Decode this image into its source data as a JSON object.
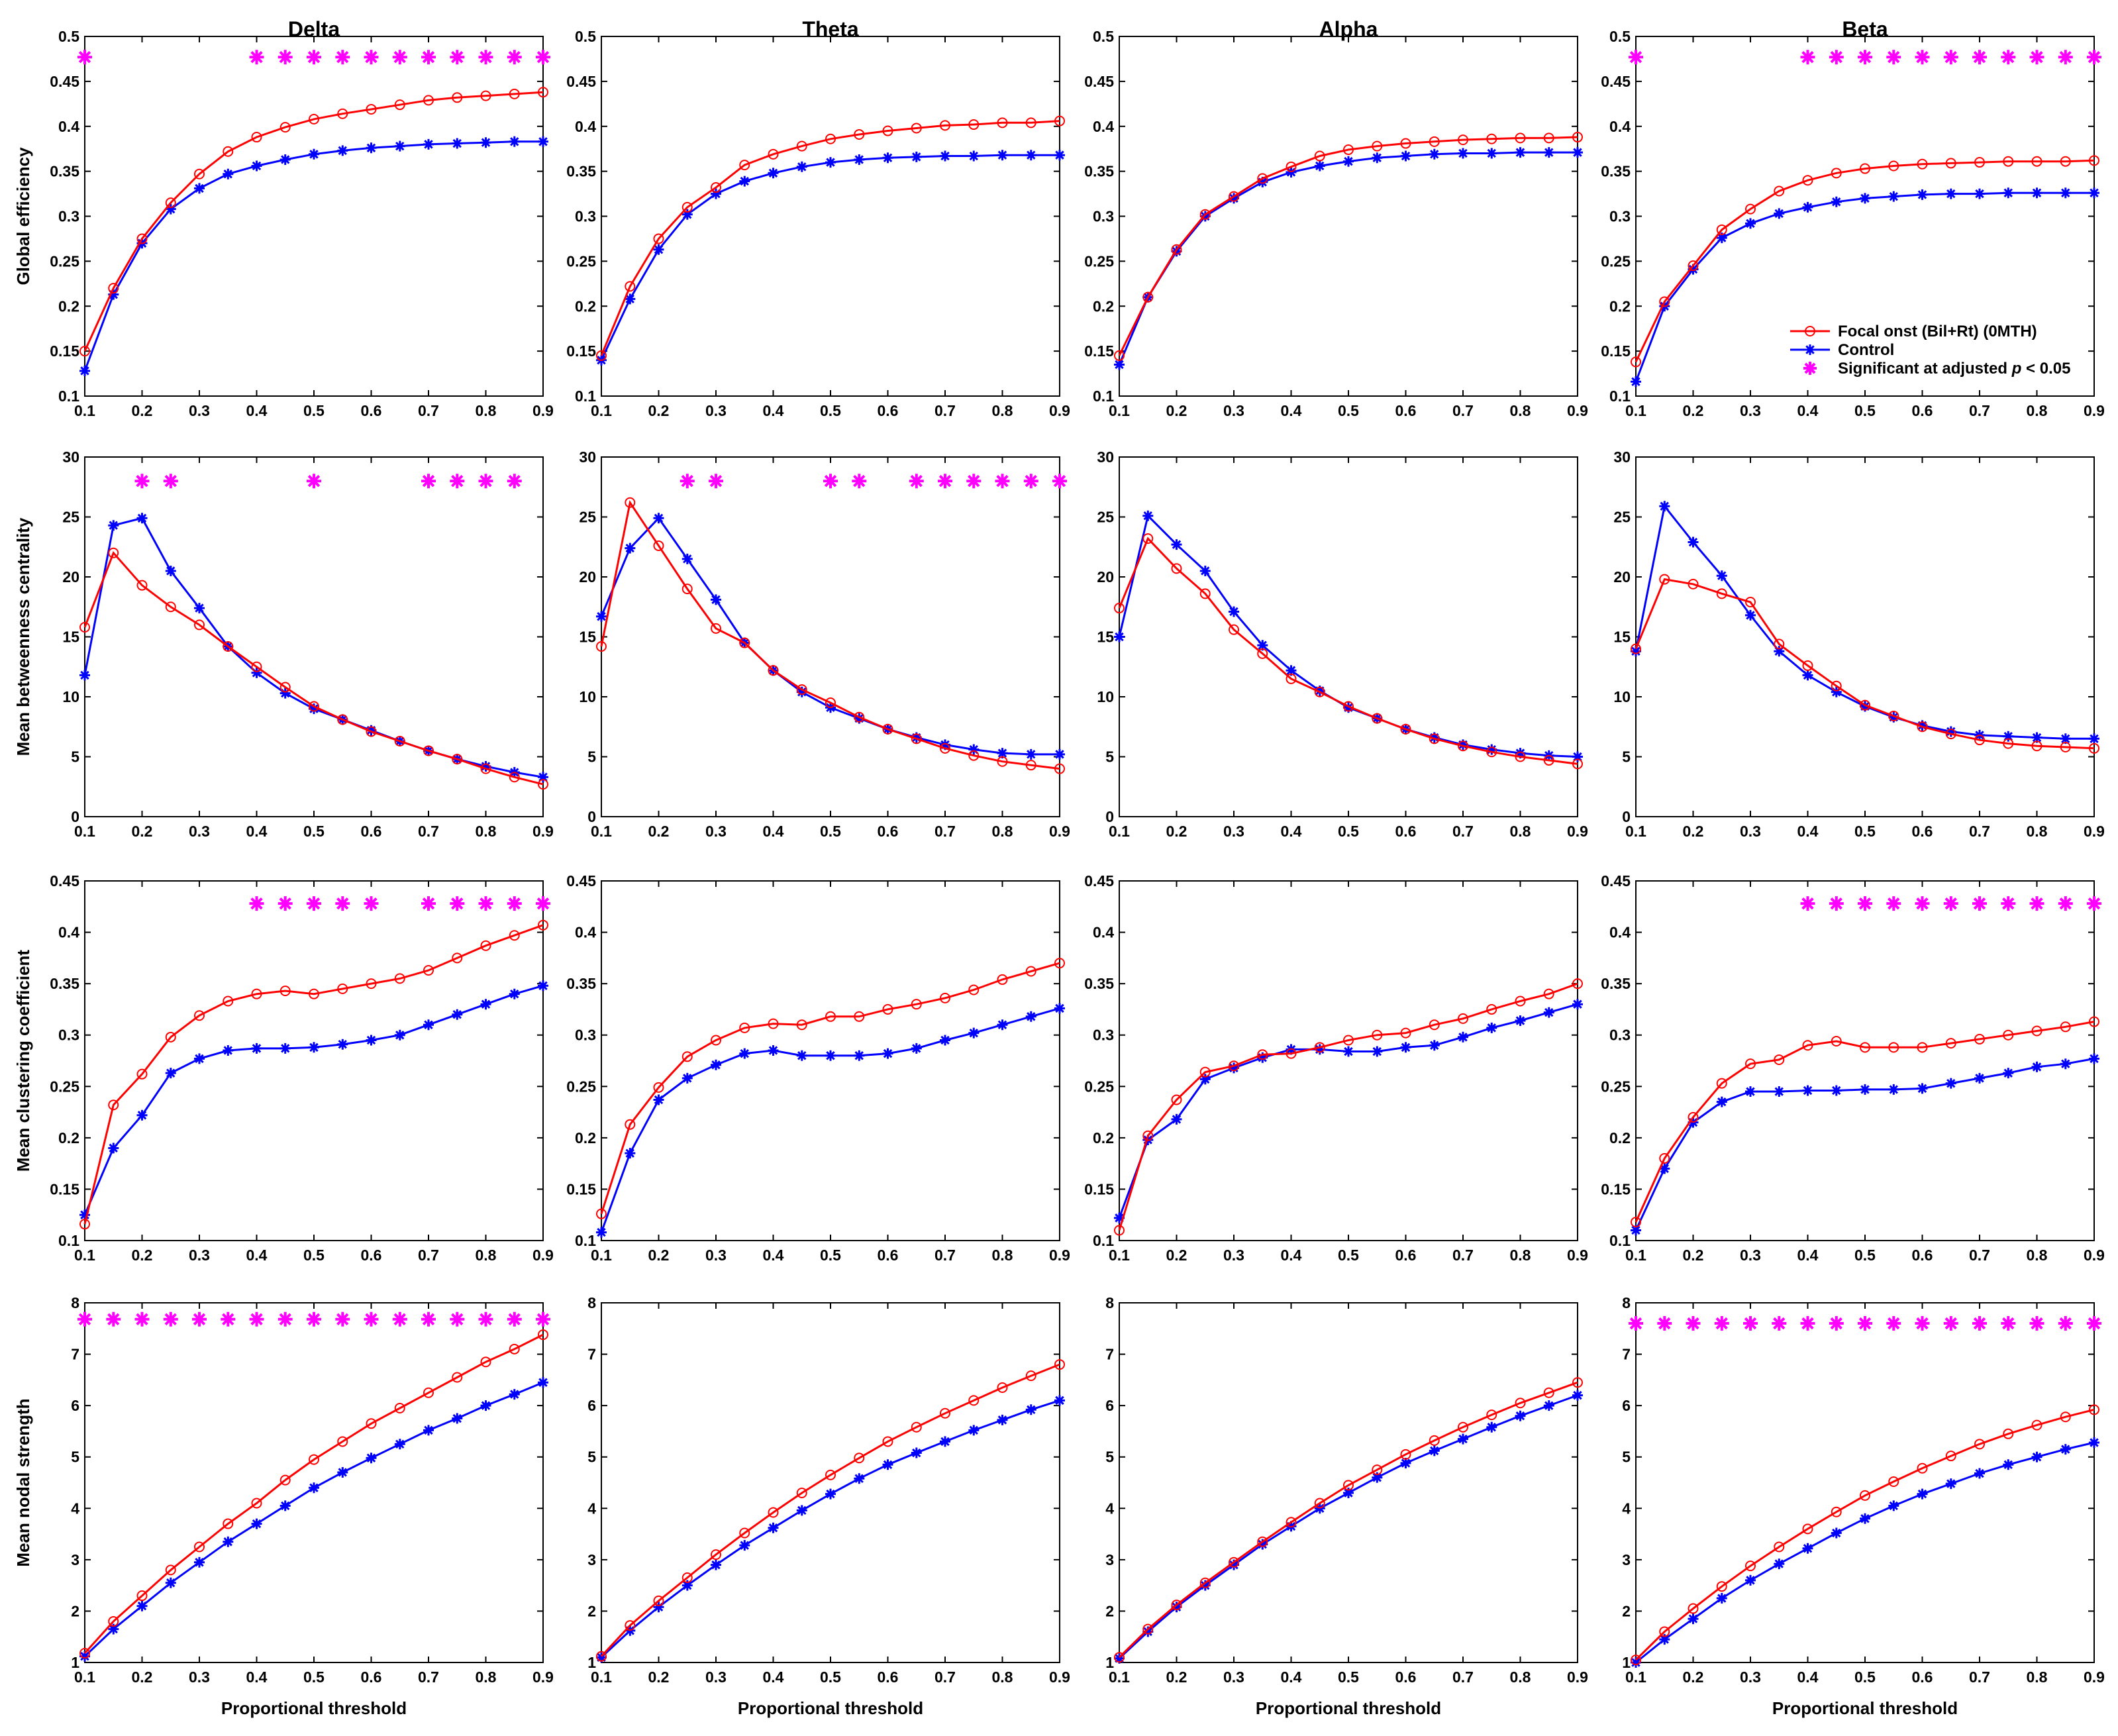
{
  "figure": {
    "columns": [
      "Delta",
      "Theta",
      "Alpha",
      "Beta"
    ],
    "row_labels": [
      "Global efficiency",
      "Mean betweenness centrality",
      "Mean clustering coefficient",
      "Mean nodal strength"
    ],
    "xlabel": "Proportional threshold",
    "legend": {
      "placement": "inside lower-right of Global efficiency / Beta panel",
      "series1": "Focal onst (Bil+Rt) (0MTH)",
      "series2": "Control",
      "sig_prefix": "Significant at adjusted ",
      "sig_p": "p",
      "sig_suffix": " < 0.05"
    },
    "colors": {
      "series1": "#ff0000",
      "series2": "#0000ff",
      "significance": "#ff00ff"
    }
  },
  "chart_data": {
    "type": "line",
    "x": [
      0.1,
      0.15,
      0.2,
      0.25,
      0.3,
      0.35,
      0.4,
      0.45,
      0.5,
      0.55,
      0.6,
      0.65,
      0.7,
      0.75,
      0.8,
      0.85,
      0.9
    ],
    "xlim": [
      0.1,
      0.9
    ],
    "xticks": [
      "0.1",
      "0.2",
      "0.3",
      "0.4",
      "0.5",
      "0.6",
      "0.7",
      "0.8",
      "0.9"
    ],
    "series_names": [
      "Focal onst (Bil+Rt) (0MTH)",
      "Control"
    ],
    "rows": [
      {
        "ylabel": "Global efficiency",
        "ylim": [
          0.1,
          0.5
        ],
        "yticks": [
          "0.1",
          "0.15",
          "0.2",
          "0.25",
          "0.3",
          "0.35",
          "0.4",
          "0.45",
          "0.5"
        ],
        "panels": [
          {
            "title": "Delta",
            "s1": [
              0.15,
              0.22,
              0.275,
              0.315,
              0.347,
              0.372,
              0.388,
              0.399,
              0.408,
              0.414,
              0.419,
              0.424,
              0.429,
              0.432,
              0.434,
              0.436,
              0.438
            ],
            "s2": [
              0.128,
              0.213,
              0.27,
              0.308,
              0.331,
              0.347,
              0.356,
              0.363,
              0.369,
              0.373,
              0.376,
              0.378,
              0.38,
              0.381,
              0.382,
              0.383,
              0.383
            ],
            "sig_x": [
              0.1,
              0.4,
              0.45,
              0.5,
              0.55,
              0.6,
              0.65,
              0.7,
              0.75,
              0.8,
              0.85,
              0.9
            ],
            "sig_y": 0.477
          },
          {
            "title": "Theta",
            "s1": [
              0.145,
              0.222,
              0.275,
              0.31,
              0.332,
              0.357,
              0.369,
              0.378,
              0.386,
              0.391,
              0.395,
              0.398,
              0.401,
              0.402,
              0.404,
              0.404,
              0.406
            ],
            "s2": [
              0.14,
              0.208,
              0.263,
              0.302,
              0.325,
              0.339,
              0.348,
              0.355,
              0.36,
              0.363,
              0.365,
              0.366,
              0.367,
              0.367,
              0.368,
              0.368,
              0.368
            ],
            "sig_x": [],
            "sig_y": 0.477
          },
          {
            "title": "Alpha",
            "s1": [
              0.145,
              0.21,
              0.263,
              0.302,
              0.322,
              0.342,
              0.355,
              0.367,
              0.374,
              0.378,
              0.381,
              0.383,
              0.385,
              0.386,
              0.387,
              0.387,
              0.388
            ],
            "s2": [
              0.135,
              0.21,
              0.261,
              0.3,
              0.32,
              0.338,
              0.349,
              0.356,
              0.361,
              0.365,
              0.367,
              0.369,
              0.37,
              0.37,
              0.371,
              0.371,
              0.371
            ],
            "sig_x": [],
            "sig_y": 0.477
          },
          {
            "title": "Beta",
            "s1": [
              0.138,
              0.205,
              0.245,
              0.285,
              0.308,
              0.328,
              0.34,
              0.348,
              0.353,
              0.356,
              0.358,
              0.359,
              0.36,
              0.361,
              0.361,
              0.361,
              0.362
            ],
            "s2": [
              0.116,
              0.2,
              0.241,
              0.276,
              0.292,
              0.303,
              0.31,
              0.316,
              0.32,
              0.322,
              0.324,
              0.325,
              0.325,
              0.326,
              0.326,
              0.326,
              0.326
            ],
            "sig_x": [
              0.1,
              0.4,
              0.45,
              0.5,
              0.55,
              0.6,
              0.65,
              0.7,
              0.75,
              0.8,
              0.85,
              0.9
            ],
            "sig_y": 0.477
          }
        ]
      },
      {
        "ylabel": "Mean betweenness centrality",
        "ylim": [
          0,
          30
        ],
        "yticks": [
          "0",
          "5",
          "10",
          "15",
          "20",
          "25",
          "30"
        ],
        "panels": [
          {
            "title": "Delta",
            "s1": [
              15.8,
              22.0,
              19.3,
              17.5,
              16.0,
              14.2,
              12.5,
              10.8,
              9.2,
              8.1,
              7.1,
              6.3,
              5.5,
              4.8,
              4.0,
              3.3,
              2.7
            ],
            "s2": [
              11.8,
              24.3,
              24.9,
              20.5,
              17.4,
              14.2,
              12.0,
              10.3,
              9.0,
              8.1,
              7.2,
              6.3,
              5.5,
              4.8,
              4.2,
              3.7,
              3.3
            ],
            "sig_x": [
              0.2,
              0.25,
              0.5,
              0.7,
              0.75,
              0.8,
              0.85
            ],
            "sig_y": 28.0
          },
          {
            "title": "Theta",
            "s1": [
              14.2,
              26.2,
              22.6,
              19.0,
              15.7,
              14.5,
              12.2,
              10.6,
              9.5,
              8.3,
              7.3,
              6.5,
              5.7,
              5.1,
              4.6,
              4.3,
              4.0
            ],
            "s2": [
              16.7,
              22.4,
              24.9,
              21.5,
              18.1,
              14.5,
              12.2,
              10.4,
              9.1,
              8.2,
              7.3,
              6.6,
              6.0,
              5.6,
              5.3,
              5.2,
              5.2
            ],
            "sig_x": [
              0.25,
              0.3,
              0.5,
              0.55,
              0.65,
              0.7,
              0.75,
              0.8,
              0.85,
              0.9
            ],
            "sig_y": 28.0
          },
          {
            "title": "Alpha",
            "s1": [
              17.4,
              23.2,
              20.7,
              18.6,
              15.6,
              13.6,
              11.5,
              10.4,
              9.2,
              8.2,
              7.3,
              6.5,
              5.9,
              5.4,
              5.0,
              4.7,
              4.4
            ],
            "s2": [
              15.0,
              25.1,
              22.7,
              20.5,
              17.1,
              14.3,
              12.2,
              10.5,
              9.1,
              8.2,
              7.3,
              6.6,
              6.0,
              5.6,
              5.3,
              5.1,
              5.0
            ],
            "sig_x": [],
            "sig_y": 28.0
          },
          {
            "title": "Beta",
            "s1": [
              14.0,
              19.8,
              19.4,
              18.6,
              17.9,
              14.4,
              12.6,
              10.9,
              9.3,
              8.4,
              7.5,
              6.9,
              6.4,
              6.1,
              5.9,
              5.8,
              5.7
            ],
            "s2": [
              13.8,
              25.9,
              22.9,
              20.1,
              16.8,
              13.8,
              11.8,
              10.4,
              9.2,
              8.3,
              7.6,
              7.1,
              6.8,
              6.7,
              6.6,
              6.5,
              6.5
            ],
            "sig_x": [],
            "sig_y": 28.0
          }
        ]
      },
      {
        "ylabel": "Mean clustering coefficient",
        "ylim": [
          0.1,
          0.45
        ],
        "yticks": [
          "0.1",
          "0.15",
          "0.2",
          "0.25",
          "0.3",
          "0.35",
          "0.4",
          "0.45"
        ],
        "panels": [
          {
            "title": "Delta",
            "s1": [
              0.116,
              0.232,
              0.262,
              0.298,
              0.319,
              0.333,
              0.34,
              0.343,
              0.34,
              0.345,
              0.35,
              0.355,
              0.363,
              0.375,
              0.387,
              0.397,
              0.407
            ],
            "s2": [
              0.125,
              0.19,
              0.222,
              0.263,
              0.277,
              0.285,
              0.287,
              0.287,
              0.288,
              0.291,
              0.295,
              0.3,
              0.31,
              0.32,
              0.33,
              0.34,
              0.348
            ],
            "sig_x": [
              0.4,
              0.45,
              0.5,
              0.55,
              0.6,
              0.7,
              0.75,
              0.8,
              0.85,
              0.9
            ],
            "sig_y": 0.428
          },
          {
            "title": "Theta",
            "s1": [
              0.126,
              0.213,
              0.249,
              0.279,
              0.295,
              0.307,
              0.311,
              0.31,
              0.318,
              0.318,
              0.325,
              0.33,
              0.336,
              0.344,
              0.354,
              0.362,
              0.37
            ],
            "s2": [
              0.108,
              0.185,
              0.237,
              0.258,
              0.271,
              0.282,
              0.285,
              0.28,
              0.28,
              0.28,
              0.282,
              0.287,
              0.295,
              0.302,
              0.31,
              0.318,
              0.326
            ],
            "sig_x": [],
            "sig_y": 0.428
          },
          {
            "title": "Alpha",
            "s1": [
              0.11,
              0.202,
              0.237,
              0.264,
              0.27,
              0.281,
              0.282,
              0.288,
              0.295,
              0.3,
              0.302,
              0.31,
              0.316,
              0.325,
              0.333,
              0.34,
              0.35
            ],
            "s2": [
              0.122,
              0.198,
              0.218,
              0.257,
              0.268,
              0.278,
              0.286,
              0.286,
              0.284,
              0.284,
              0.288,
              0.29,
              0.298,
              0.307,
              0.314,
              0.322,
              0.33
            ],
            "sig_x": [],
            "sig_y": 0.428
          },
          {
            "title": "Beta",
            "s1": [
              0.118,
              0.18,
              0.22,
              0.253,
              0.272,
              0.276,
              0.29,
              0.294,
              0.288,
              0.288,
              0.288,
              0.292,
              0.296,
              0.3,
              0.304,
              0.308,
              0.313
            ],
            "s2": [
              0.11,
              0.17,
              0.215,
              0.235,
              0.245,
              0.245,
              0.246,
              0.246,
              0.247,
              0.247,
              0.248,
              0.253,
              0.258,
              0.263,
              0.269,
              0.272,
              0.277
            ],
            "sig_x": [
              0.4,
              0.45,
              0.5,
              0.55,
              0.6,
              0.65,
              0.7,
              0.75,
              0.8,
              0.85,
              0.9
            ],
            "sig_y": 0.428
          }
        ]
      },
      {
        "ylabel": "Mean nodal strength",
        "ylim": [
          1,
          8
        ],
        "yticks": [
          "1",
          "2",
          "3",
          "4",
          "5",
          "6",
          "7",
          "8"
        ],
        "panels": [
          {
            "title": "Delta",
            "s1": [
              1.18,
              1.8,
              2.3,
              2.8,
              3.25,
              3.7,
              4.1,
              4.55,
              4.95,
              5.3,
              5.65,
              5.95,
              6.25,
              6.55,
              6.85,
              7.1,
              7.38
            ],
            "s2": [
              1.12,
              1.65,
              2.1,
              2.55,
              2.95,
              3.35,
              3.7,
              4.05,
              4.4,
              4.7,
              4.98,
              5.25,
              5.52,
              5.75,
              6.0,
              6.22,
              6.45
            ],
            "sig_x": [
              0.1,
              0.15,
              0.2,
              0.25,
              0.3,
              0.35,
              0.4,
              0.45,
              0.5,
              0.55,
              0.6,
              0.65,
              0.7,
              0.75,
              0.8,
              0.85,
              0.9
            ],
            "sig_y": 7.68
          },
          {
            "title": "Theta",
            "s1": [
              1.12,
              1.72,
              2.2,
              2.65,
              3.1,
              3.52,
              3.92,
              4.3,
              4.65,
              4.98,
              5.3,
              5.58,
              5.85,
              6.1,
              6.35,
              6.58,
              6.8
            ],
            "s2": [
              1.1,
              1.62,
              2.08,
              2.5,
              2.9,
              3.28,
              3.62,
              3.96,
              4.28,
              4.58,
              4.85,
              5.08,
              5.3,
              5.52,
              5.72,
              5.92,
              6.1
            ],
            "sig_x": [],
            "sig_y": 7.68
          },
          {
            "title": "Alpha",
            "s1": [
              1.1,
              1.65,
              2.12,
              2.55,
              2.95,
              3.35,
              3.73,
              4.1,
              4.45,
              4.75,
              5.05,
              5.32,
              5.58,
              5.82,
              6.05,
              6.25,
              6.45
            ],
            "s2": [
              1.08,
              1.6,
              2.08,
              2.5,
              2.9,
              3.3,
              3.65,
              4.0,
              4.3,
              4.6,
              4.88,
              5.12,
              5.35,
              5.58,
              5.8,
              6.0,
              6.2
            ],
            "sig_x": [],
            "sig_y": 7.68
          },
          {
            "title": "Beta",
            "s1": [
              1.05,
              1.6,
              2.05,
              2.48,
              2.88,
              3.25,
              3.6,
              3.93,
              4.25,
              4.52,
              4.78,
              5.02,
              5.25,
              5.45,
              5.62,
              5.78,
              5.92
            ],
            "s2": [
              1.0,
              1.45,
              1.85,
              2.25,
              2.6,
              2.92,
              3.22,
              3.52,
              3.8,
              4.05,
              4.28,
              4.48,
              4.68,
              4.85,
              5.0,
              5.15,
              5.28
            ],
            "sig_x": [
              0.1,
              0.15,
              0.2,
              0.25,
              0.3,
              0.35,
              0.4,
              0.45,
              0.5,
              0.55,
              0.6,
              0.65,
              0.7,
              0.75,
              0.8,
              0.85,
              0.9
            ],
            "sig_y": 7.6
          }
        ]
      }
    ]
  }
}
